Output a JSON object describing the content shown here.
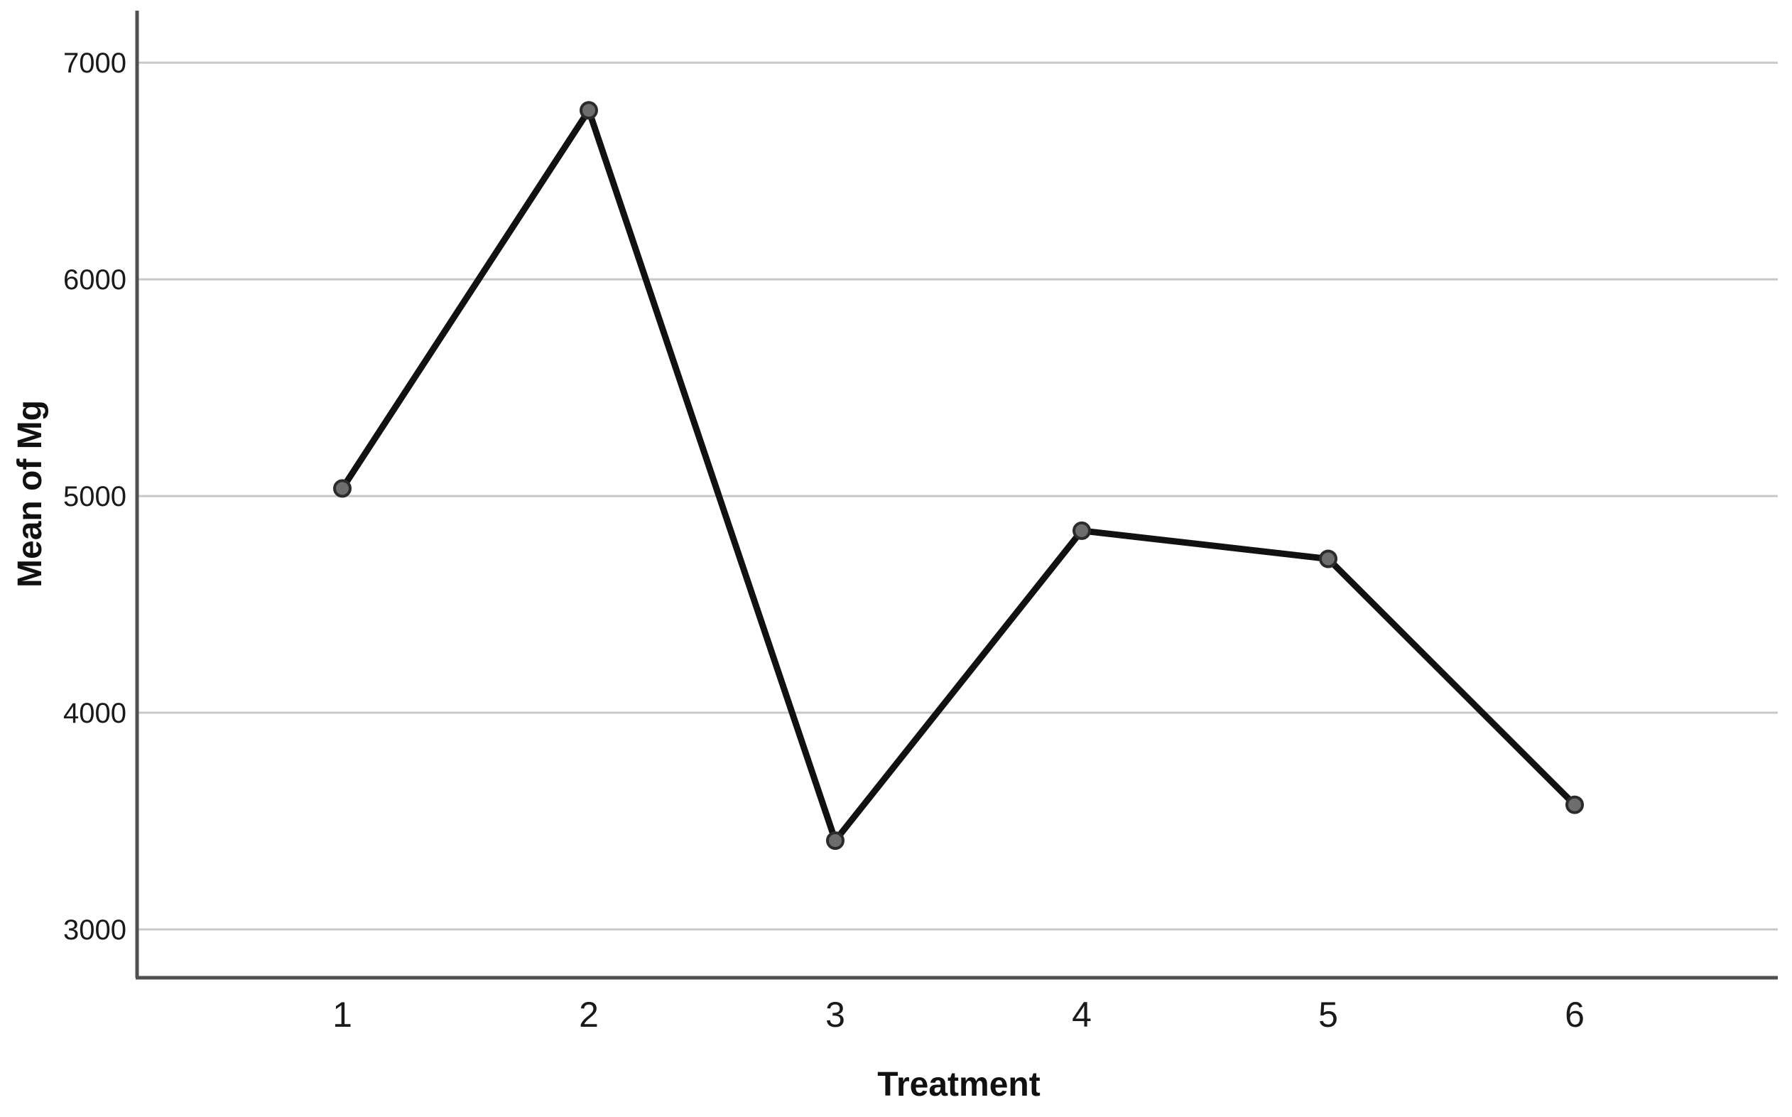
{
  "chart_data": {
    "type": "line",
    "title": "",
    "xlabel": "Treatment",
    "ylabel": "Mean of Mg",
    "categories": [
      "1",
      "2",
      "3",
      "4",
      "5",
      "6"
    ],
    "series": [
      {
        "name": "Mean of Mg",
        "values": [
          5035,
          6780,
          3410,
          4840,
          4710,
          3575
        ]
      }
    ],
    "yticks": [
      3000,
      4000,
      5000,
      6000,
      7000
    ],
    "ytick_labels": [
      "3000",
      "4000",
      "5000",
      "6000",
      "7000"
    ],
    "ylim": [
      2777,
      7240
    ],
    "grid": "horizontal-only",
    "legend_position": "none",
    "colors": {
      "line": "#111111",
      "marker_fill": "#6d6d6d",
      "marker_stroke": "#2b2b2b",
      "gridline": "#c8c8c8",
      "axis": "#4f4f4f",
      "text": "#1a1a1a",
      "background": "#ffffff"
    }
  }
}
